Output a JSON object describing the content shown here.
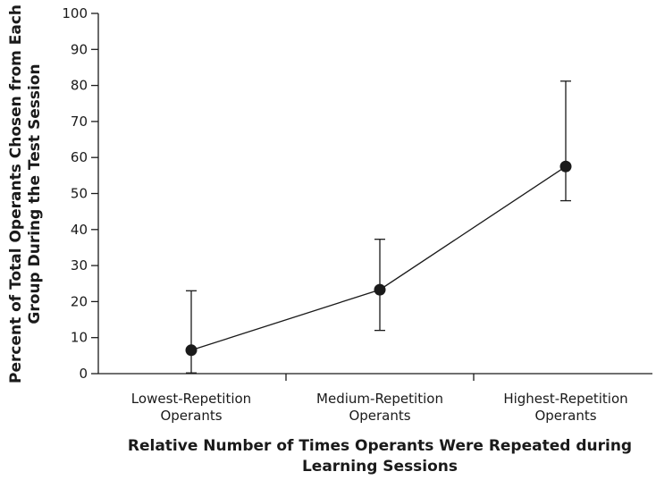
{
  "chart_data": {
    "type": "line",
    "categories": [
      [
        "Lowest-Repetition",
        "Operants"
      ],
      [
        "Medium-Repetition",
        "Operants"
      ],
      [
        "Highest-Repetition",
        "Operants"
      ]
    ],
    "values": [
      6.5,
      23.3,
      57.5
    ],
    "error_upper": [
      23,
      37.3,
      81.2
    ],
    "error_lower": [
      0.2,
      12,
      48
    ],
    "xlabel": [
      "Relative Number of Times Operants Were Repeated during",
      "Learning Sessions"
    ],
    "ylabel": [
      "Percent of Total Operants Chosen from Each",
      "Group During the Test Session"
    ],
    "ylim": [
      0,
      100
    ],
    "yticks": [
      0,
      10,
      20,
      30,
      40,
      50,
      60,
      70,
      80,
      90,
      100
    ],
    "grid": false,
    "legend": "none",
    "colors": {
      "ink": "#1a1a1a",
      "background": "#ffffff"
    }
  }
}
